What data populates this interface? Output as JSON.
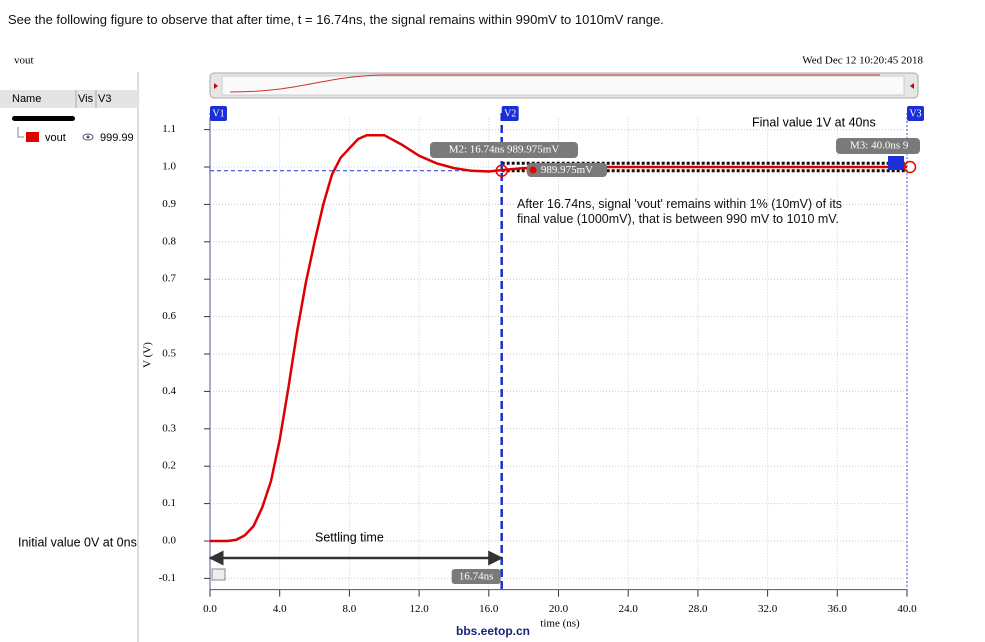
{
  "intro": "See the following figure to observe that after time, t = 16.74ns, the signal remains within 990mV to 1010mV range.",
  "panel": {
    "columns": [
      "Name",
      "Vis",
      "V3"
    ],
    "value": "999.99"
  },
  "watermark": "bbs.eetop.cn",
  "chart_data": {
    "type": "line",
    "title": "vout",
    "timestamp": "Wed Dec 12 10:20:45 2018",
    "xlabel": "time (ns)",
    "ylabel": "V (V)",
    "x": [
      0,
      1,
      1.5,
      2,
      2.5,
      3,
      3.5,
      4,
      4.5,
      5,
      5.5,
      6,
      6.5,
      7,
      7.5,
      8,
      8.5,
      9,
      10,
      11,
      12,
      13,
      14,
      15,
      16,
      17,
      18,
      20,
      24,
      28,
      32,
      36,
      40
    ],
    "series": [
      {
        "name": "vout",
        "color": "#dd0000",
        "values": [
          0,
          0,
          0.003,
          0.015,
          0.04,
          0.09,
          0.16,
          0.27,
          0.41,
          0.56,
          0.69,
          0.8,
          0.9,
          0.98,
          1.025,
          1.05,
          1.075,
          1.085,
          1.085,
          1.06,
          1.03,
          1.01,
          0.997,
          0.99,
          0.988,
          0.993,
          0.997,
          1.0,
          1.0,
          1.0,
          1.0,
          1.0,
          1.0
        ]
      }
    ],
    "xlim": [
      0,
      40
    ],
    "ylim": [
      -0.13,
      1.13
    ],
    "xticks": [
      {
        "value": 0,
        "label": "0.0"
      },
      {
        "value": 4,
        "label": "4.0"
      },
      {
        "value": 8,
        "label": "8.0"
      },
      {
        "value": 12,
        "label": "12.0"
      },
      {
        "value": 16,
        "label": "16.0"
      },
      {
        "value": 20,
        "label": "20.0"
      },
      {
        "value": 24,
        "label": "24.0"
      },
      {
        "value": 28,
        "label": "28.0"
      },
      {
        "value": 32,
        "label": "32.0"
      },
      {
        "value": 36,
        "label": "36.0"
      },
      {
        "value": 40,
        "label": "40.0"
      }
    ],
    "yticks": [
      -0.1,
      {
        "value": 0,
        "label": "0.0"
      },
      0.1,
      0.2,
      0.3,
      0.4,
      0.5,
      0.6,
      0.7,
      0.8,
      0.9,
      {
        "value": 1,
        "label": "1.0"
      },
      1.1
    ],
    "grid": true,
    "cursors": [
      {
        "label": "V1",
        "x": 0
      },
      {
        "label": "V2",
        "x": 16.74
      },
      {
        "label": "V3",
        "x": 40
      }
    ],
    "band": [
      0.99,
      1.01
    ],
    "markers": [
      {
        "label": "M2: 16.74ns 989.975mV",
        "x": 16.74,
        "y": 0.989975
      },
      {
        "label": "M3: 40.0ns 9",
        "x": 40,
        "y": 1.0
      }
    ],
    "marker_readout": "989.975mV",
    "annotations": [
      "Final value 1V at 40ns",
      "After 16.74ns, signal 'vout' remains within 1% (10mV) of its final value (1000mV), that is between 990 mV to 1010 mV.",
      "Initial value 0V at 0ns"
    ],
    "settling": {
      "label": "Settling time",
      "from": 0,
      "to": 16.74,
      "value_label": "16.74ns"
    }
  }
}
